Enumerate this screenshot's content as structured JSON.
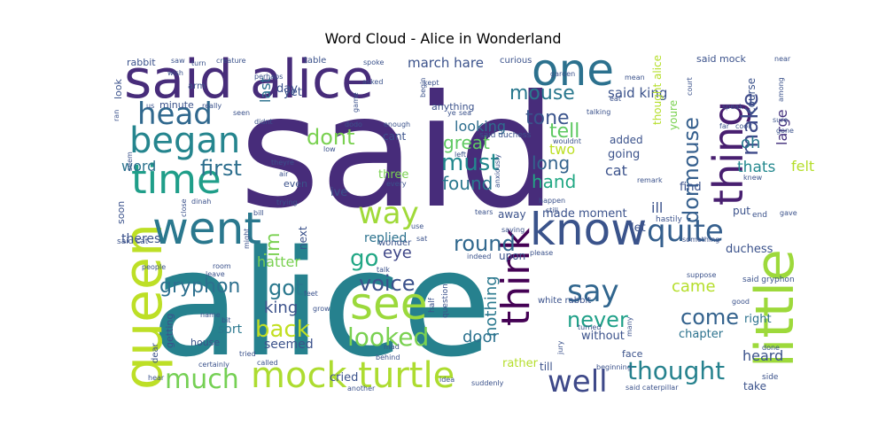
{
  "chart_data": {
    "type": "wordcloud",
    "title": "Word Cloud - Alice in Wonderland",
    "background": "#ffffff",
    "colormap": "viridis",
    "words": [
      {
        "text": "said",
        "weight": 1.0,
        "color": "#472c7a"
      },
      {
        "text": "alice",
        "weight": 0.95,
        "color": "#26818e"
      },
      {
        "text": "said alice",
        "weight": 0.55,
        "color": "#472c7a"
      },
      {
        "text": "one",
        "weight": 0.45,
        "color": "#2c718e"
      },
      {
        "text": "little",
        "weight": 0.5,
        "color": "#9dd93b"
      },
      {
        "text": "queen",
        "weight": 0.45,
        "color": "#bddf26"
      },
      {
        "text": "know",
        "weight": 0.45,
        "color": "#3a538b"
      },
      {
        "text": "went",
        "weight": 0.42,
        "color": "#2a788e"
      },
      {
        "text": "time",
        "weight": 0.4,
        "color": "#1f9e89"
      },
      {
        "text": "mock turtle",
        "weight": 0.4,
        "color": "#addc30"
      },
      {
        "text": "thing",
        "weight": 0.4,
        "color": "#481f70"
      },
      {
        "text": "think",
        "weight": 0.38,
        "color": "#440154"
      },
      {
        "text": "began",
        "weight": 0.35,
        "color": "#25858e"
      },
      {
        "text": "see",
        "weight": 0.38,
        "color": "#9bd93c"
      },
      {
        "text": "head",
        "weight": 0.3,
        "color": "#30688e"
      },
      {
        "text": "say",
        "weight": 0.3,
        "color": "#31668e"
      },
      {
        "text": "well",
        "weight": 0.3,
        "color": "#3e4989"
      },
      {
        "text": "quite",
        "weight": 0.32,
        "color": "#355f8d"
      },
      {
        "text": "way",
        "weight": 0.32,
        "color": "#a0da39"
      },
      {
        "text": "much",
        "weight": 0.28,
        "color": "#75d054"
      },
      {
        "text": "thought",
        "weight": 0.26,
        "color": "#26828e"
      },
      {
        "text": "looked",
        "weight": 0.25,
        "color": "#7ad151"
      },
      {
        "text": "back",
        "weight": 0.24,
        "color": "#c2df23"
      },
      {
        "text": "must",
        "weight": 0.22,
        "color": "#23898e"
      },
      {
        "text": "dormouse",
        "weight": 0.2,
        "color": "#355f8d"
      },
      {
        "text": "make",
        "weight": 0.2,
        "color": "#3e4a89"
      },
      {
        "text": "first",
        "weight": 0.2,
        "color": "#2e6f8e"
      },
      {
        "text": "dont",
        "weight": 0.2,
        "color": "#7ad151"
      },
      {
        "text": "round",
        "weight": 0.2,
        "color": "#31688e"
      },
      {
        "text": "voice",
        "weight": 0.2,
        "color": "#3b518b"
      },
      {
        "text": "got",
        "weight": 0.2,
        "color": "#2a788e"
      },
      {
        "text": "go",
        "weight": 0.2,
        "color": "#22a785"
      },
      {
        "text": "come",
        "weight": 0.2,
        "color": "#33628d"
      },
      {
        "text": "never",
        "weight": 0.2,
        "color": "#1fa088"
      },
      {
        "text": "mouse",
        "weight": 0.18,
        "color": "#2a788e"
      },
      {
        "text": "tone",
        "weight": 0.18,
        "color": "#3a548c"
      },
      {
        "text": "tell",
        "weight": 0.17,
        "color": "#5ec962"
      },
      {
        "text": "gryphon",
        "weight": 0.16,
        "color": "#2d708e"
      },
      {
        "text": "im",
        "weight": 0.15,
        "color": "#7ad151"
      },
      {
        "text": "march hare",
        "weight": 0.12,
        "color": "#3b528b"
      },
      {
        "text": "said king",
        "weight": 0.12,
        "color": "#3b528b"
      },
      {
        "text": "great",
        "weight": 0.14,
        "color": "#5ec962"
      },
      {
        "text": "found",
        "weight": 0.14,
        "color": "#2a788e"
      },
      {
        "text": "long",
        "weight": 0.14,
        "color": "#33638d"
      },
      {
        "text": "hand",
        "weight": 0.14,
        "color": "#22a884"
      },
      {
        "text": "nothing",
        "weight": 0.14,
        "color": "#2a788e"
      },
      {
        "text": "king",
        "weight": 0.14,
        "color": "#3b528b"
      },
      {
        "text": "came",
        "weight": 0.14,
        "color": "#b5de2b"
      },
      {
        "text": "looking",
        "weight": 0.13,
        "color": "#2e6e8e"
      },
      {
        "text": "hatter",
        "weight": 0.13,
        "color": "#7ad151"
      },
      {
        "text": "eye",
        "weight": 0.13,
        "color": "#3f4788"
      },
      {
        "text": "door",
        "weight": 0.13,
        "color": "#2c728e"
      },
      {
        "text": "cat",
        "weight": 0.12,
        "color": "#3b528b"
      },
      {
        "text": "large",
        "weight": 0.12,
        "color": "#46337e"
      },
      {
        "text": "thats",
        "weight": 0.12,
        "color": "#23888e"
      },
      {
        "text": "felt",
        "weight": 0.12,
        "color": "#b5de2b"
      },
      {
        "text": "oh",
        "weight": 0.12,
        "color": "#2a788e"
      },
      {
        "text": "two",
        "weight": 0.12,
        "color": "#bddf26"
      },
      {
        "text": "word",
        "weight": 0.12,
        "color": "#2c728e"
      },
      {
        "text": "last",
        "weight": 0.12,
        "color": "#2c728e"
      },
      {
        "text": "replied",
        "weight": 0.11,
        "color": "#2c728e"
      },
      {
        "text": "sort",
        "weight": 0.11,
        "color": "#2a788e"
      },
      {
        "text": "seemed",
        "weight": 0.11,
        "color": "#3b528b"
      },
      {
        "text": "heard",
        "weight": 0.11,
        "color": "#3b528b"
      },
      {
        "text": "ill",
        "weight": 0.11,
        "color": "#3b528b"
      },
      {
        "text": "duchess",
        "weight": 0.1,
        "color": "#3b528b"
      },
      {
        "text": "chapter",
        "weight": 0.1,
        "color": "#2c728e"
      },
      {
        "text": "right",
        "weight": 0.1,
        "color": "#2c728e"
      },
      {
        "text": "made moment",
        "weight": 0.1,
        "color": "#3b528b"
      },
      {
        "text": "theres",
        "weight": 0.1,
        "color": "#3b528b"
      },
      {
        "text": "cried",
        "weight": 0.1,
        "color": "#3b528b"
      },
      {
        "text": "rather",
        "weight": 0.1,
        "color": "#b5de2b"
      },
      {
        "text": "without",
        "weight": 0.1,
        "color": "#3b528b"
      },
      {
        "text": "going",
        "weight": 0.1,
        "color": "#3b528b"
      },
      {
        "text": "put",
        "weight": 0.1,
        "color": "#3b528b"
      },
      {
        "text": "find",
        "weight": 0.1,
        "color": "#3b528b"
      },
      {
        "text": "let",
        "weight": 0.1,
        "color": "#3b528b"
      },
      {
        "text": "three",
        "weight": 0.1,
        "color": "#7ad151"
      },
      {
        "text": "day",
        "weight": 0.1,
        "color": "#3b528b"
      },
      {
        "text": "ive",
        "weight": 0.1,
        "color": "#3b528b"
      },
      {
        "text": "cant",
        "weight": 0.1,
        "color": "#3b528b"
      },
      {
        "text": "yet",
        "weight": 0.1,
        "color": "#3b528b"
      },
      {
        "text": "added",
        "weight": 0.09,
        "color": "#3b528b"
      },
      {
        "text": "upon",
        "weight": 0.09,
        "color": "#3b528b"
      },
      {
        "text": "away",
        "weight": 0.09,
        "color": "#3b528b"
      },
      {
        "text": "till",
        "weight": 0.09,
        "color": "#3b528b"
      },
      {
        "text": "take",
        "weight": 0.09,
        "color": "#3b528b"
      },
      {
        "text": "next",
        "weight": 0.09,
        "color": "#3b528b"
      },
      {
        "text": "course",
        "weight": 0.09,
        "color": "#3b528b"
      },
      {
        "text": "youre",
        "weight": 0.09,
        "color": "#7ad151"
      },
      {
        "text": "thought alice",
        "weight": 0.09,
        "color": "#b5de2b"
      },
      {
        "text": "said mock",
        "weight": 0.09,
        "color": "#3b528b"
      },
      {
        "text": "white rabbit",
        "weight": 0.08,
        "color": "#3b528b"
      },
      {
        "text": "rabbit",
        "weight": 0.08,
        "color": "#3b528b"
      },
      {
        "text": "minute",
        "weight": 0.08,
        "color": "#3b528b"
      },
      {
        "text": "curious",
        "weight": 0.08,
        "color": "#3b528b"
      },
      {
        "text": "table",
        "weight": 0.08,
        "color": "#3b528b"
      },
      {
        "text": "look",
        "weight": 0.08,
        "color": "#3b528b"
      },
      {
        "text": "getting",
        "weight": 0.08,
        "color": "#3b528b"
      },
      {
        "text": "house",
        "weight": 0.08,
        "color": "#3b528b"
      },
      {
        "text": "soon",
        "weight": 0.08,
        "color": "#3b528b"
      },
      {
        "text": "even",
        "weight": 0.08,
        "color": "#3b528b"
      },
      {
        "text": "anything",
        "weight": 0.08,
        "color": "#3b528b"
      },
      {
        "text": "face",
        "weight": 0.08,
        "color": "#3b528b"
      },
      {
        "text": "said cat",
        "weight": 0.07,
        "color": "#3b528b"
      },
      {
        "text": "said gryphon",
        "weight": 0.07,
        "color": "#3b528b"
      },
      {
        "text": "said caterpillar",
        "weight": 0.07,
        "color": "#3b528b"
      },
      {
        "text": "said duchess",
        "weight": 0.07,
        "color": "#3b528b"
      },
      {
        "text": "wonder",
        "weight": 0.07,
        "color": "#3b528b"
      },
      {
        "text": "dear",
        "weight": 0.07,
        "color": "#3b528b"
      },
      {
        "text": "arm",
        "weight": 0.07,
        "color": "#3b528b"
      },
      {
        "text": "question",
        "weight": 0.06,
        "color": "#3b528b"
      },
      {
        "text": "half",
        "weight": 0.06,
        "color": "#3b528b"
      },
      {
        "text": "people",
        "weight": 0.06,
        "color": "#3b528b"
      },
      {
        "text": "hastily",
        "weight": 0.06,
        "color": "#3b528b"
      },
      {
        "text": "end",
        "weight": 0.06,
        "color": "#3b528b"
      },
      {
        "text": "side",
        "weight": 0.06,
        "color": "#3b528b"
      },
      {
        "text": "called",
        "weight": 0.06,
        "color": "#3b528b"
      },
      {
        "text": "tried",
        "weight": 0.06,
        "color": "#3b528b"
      },
      {
        "text": "another",
        "weight": 0.06,
        "color": "#3b528b"
      },
      {
        "text": "idea",
        "weight": 0.06,
        "color": "#3b528b"
      },
      {
        "text": "suddenly",
        "weight": 0.06,
        "color": "#3b528b"
      },
      {
        "text": "seen",
        "weight": 0.06,
        "color": "#3b528b"
      },
      {
        "text": "didnt",
        "weight": 0.06,
        "color": "#3b528b"
      },
      {
        "text": "theyre",
        "weight": 0.06,
        "color": "#3b528b"
      },
      {
        "text": "trying",
        "weight": 0.06,
        "color": "#3b528b"
      },
      {
        "text": "bill",
        "weight": 0.06,
        "color": "#3b528b"
      },
      {
        "text": "remark",
        "weight": 0.05,
        "color": "#3b528b"
      },
      {
        "text": "creature",
        "weight": 0.05,
        "color": "#3b528b"
      },
      {
        "text": "spoke",
        "weight": 0.05,
        "color": "#3b528b"
      },
      {
        "text": "garden",
        "weight": 0.05,
        "color": "#3b528b"
      },
      {
        "text": "near",
        "weight": 0.05,
        "color": "#3b528b"
      },
      {
        "text": "saw",
        "weight": 0.05,
        "color": "#3b528b"
      },
      {
        "text": "turn",
        "weight": 0.05,
        "color": "#3b528b"
      },
      {
        "text": "perhaps",
        "weight": 0.05,
        "color": "#3b528b"
      },
      {
        "text": "asked",
        "weight": 0.05,
        "color": "#3b528b"
      },
      {
        "text": "kept",
        "weight": 0.05,
        "color": "#3b528b"
      },
      {
        "text": "really",
        "weight": 0.05,
        "color": "#3b528b"
      },
      {
        "text": "us",
        "weight": 0.05,
        "color": "#3b528b"
      },
      {
        "text": "enough",
        "weight": 0.05,
        "color": "#3b528b"
      },
      {
        "text": "talking",
        "weight": 0.05,
        "color": "#3b528b"
      },
      {
        "text": "wouldnt",
        "weight": 0.05,
        "color": "#3b528b"
      },
      {
        "text": "left",
        "weight": 0.05,
        "color": "#3b528b"
      },
      {
        "text": "every",
        "weight": 0.05,
        "color": "#3b528b"
      },
      {
        "text": "knew",
        "weight": 0.05,
        "color": "#3b528b"
      },
      {
        "text": "gave",
        "weight": 0.05,
        "color": "#3b528b"
      },
      {
        "text": "tears",
        "weight": 0.05,
        "color": "#3b528b"
      },
      {
        "text": "still",
        "weight": 0.05,
        "color": "#3b528b"
      },
      {
        "text": "happen",
        "weight": 0.05,
        "color": "#3b528b"
      },
      {
        "text": "please",
        "weight": 0.05,
        "color": "#3b528b"
      },
      {
        "text": "talk",
        "weight": 0.05,
        "color": "#3b528b"
      },
      {
        "text": "indeed",
        "weight": 0.05,
        "color": "#3b528b"
      },
      {
        "text": "jury",
        "weight": 0.05,
        "color": "#3b528b"
      },
      {
        "text": "turned",
        "weight": 0.05,
        "color": "#3b528b"
      },
      {
        "text": "many",
        "weight": 0.05,
        "color": "#3b528b"
      },
      {
        "text": "good",
        "weight": 0.05,
        "color": "#3b528b"
      },
      {
        "text": "done",
        "weight": 0.05,
        "color": "#3b528b"
      },
      {
        "text": "gone",
        "weight": 0.05,
        "color": "#3b528b"
      },
      {
        "text": "far",
        "weight": 0.05,
        "color": "#3b528b"
      },
      {
        "text": "cook",
        "weight": 0.05,
        "color": "#3b528b"
      },
      {
        "text": "sure",
        "weight": 0.05,
        "color": "#3b528b"
      },
      {
        "text": "speak",
        "weight": 0.05,
        "color": "#3b528b"
      },
      {
        "text": "among",
        "weight": 0.05,
        "color": "#3b528b"
      },
      {
        "text": "dinah",
        "weight": 0.05,
        "color": "#3b528b"
      },
      {
        "text": "close",
        "weight": 0.05,
        "color": "#3b528b"
      },
      {
        "text": "room",
        "weight": 0.05,
        "color": "#3b528b"
      },
      {
        "text": "name",
        "weight": 0.05,
        "color": "#3b528b"
      },
      {
        "text": "bit",
        "weight": 0.05,
        "color": "#3b528b"
      },
      {
        "text": "feet",
        "weight": 0.05,
        "color": "#3b528b"
      },
      {
        "text": "grow",
        "weight": 0.05,
        "color": "#3b528b"
      },
      {
        "text": "mad",
        "weight": 0.05,
        "color": "#3b528b"
      },
      {
        "text": "behind",
        "weight": 0.05,
        "color": "#3b528b"
      },
      {
        "text": "certainly",
        "weight": 0.05,
        "color": "#3b528b"
      },
      {
        "text": "hear",
        "weight": 0.05,
        "color": "#3b528b"
      },
      {
        "text": "beginning",
        "weight": 0.05,
        "color": "#3b528b"
      },
      {
        "text": "suppose",
        "weight": 0.05,
        "color": "#3b528b"
      },
      {
        "text": "something",
        "weight": 0.05,
        "color": "#3b528b"
      },
      {
        "text": "might",
        "weight": 0.05,
        "color": "#3b528b"
      },
      {
        "text": "saying",
        "weight": 0.05,
        "color": "#3b528b"
      },
      {
        "text": "sat",
        "weight": 0.05,
        "color": "#3b528b"
      },
      {
        "text": "use",
        "weight": 0.05,
        "color": "#3b528b"
      },
      {
        "text": "anxiously",
        "weight": 0.05,
        "color": "#3b528b"
      },
      {
        "text": "low",
        "weight": 0.05,
        "color": "#3b528b"
      },
      {
        "text": "air",
        "weight": 0.05,
        "color": "#3b528b"
      },
      {
        "text": "dodo",
        "weight": 0.05,
        "color": "#3b528b"
      },
      {
        "text": "game",
        "weight": 0.05,
        "color": "#3b528b"
      },
      {
        "text": "ran",
        "weight": 0.05,
        "color": "#3b528b"
      },
      {
        "text": "seem",
        "weight": 0.05,
        "color": "#3b528b"
      },
      {
        "text": "wish",
        "weight": 0.05,
        "color": "#3b528b"
      },
      {
        "text": "court",
        "weight": 0.05,
        "color": "#3b528b"
      },
      {
        "text": "mean",
        "weight": 0.05,
        "color": "#3b528b"
      },
      {
        "text": "eat",
        "weight": 0.05,
        "color": "#3b528b"
      },
      {
        "text": "begin",
        "weight": 0.05,
        "color": "#3b528b"
      },
      {
        "text": "ye",
        "weight": 0.05,
        "color": "#3b528b"
      },
      {
        "text": "sea",
        "weight": 0.05,
        "color": "#3b528b"
      },
      {
        "text": "leave",
        "weight": 0.05,
        "color": "#3b528b"
      }
    ]
  }
}
